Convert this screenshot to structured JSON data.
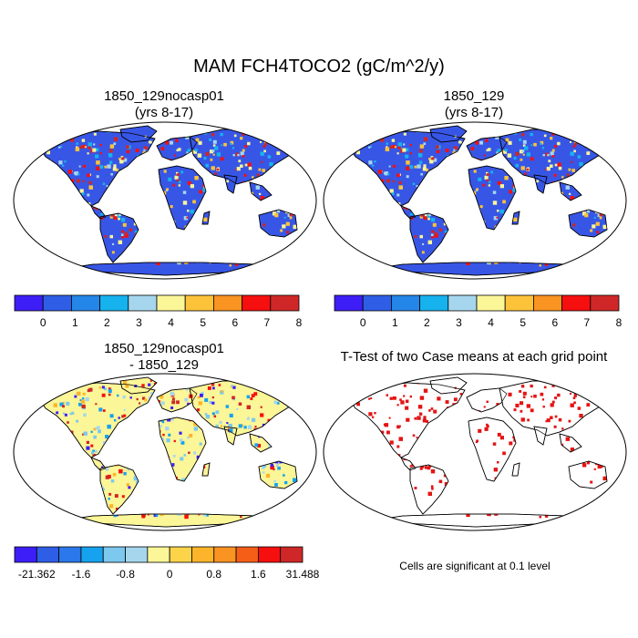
{
  "title": "MAM FCH4TOCO2 (gC/m^2/y)",
  "panels": [
    {
      "id": "case1",
      "title_line1": "1850_129nocasp01",
      "title_line2": "(yrs 8-17)"
    },
    {
      "id": "case2",
      "title_line1": "1850_129",
      "title_line2": "(yrs 8-17)"
    },
    {
      "id": "diff",
      "title_line1": "1850_129nocasp01",
      "title_line2": "- 1850_129"
    },
    {
      "id": "ttest",
      "title_line1": "T-Test of two Case means at each grid point",
      "title_line2": ""
    }
  ],
  "colorbar_abs": {
    "colors": [
      "#3d1ef7",
      "#2f5ee6",
      "#2486e8",
      "#16b2ee",
      "#a6d6ee",
      "#fbf698",
      "#fcc33a",
      "#f99321",
      "#f50f0f",
      "#cf2727"
    ],
    "labels": [
      "0",
      "1",
      "2",
      "3",
      "4",
      "5",
      "6",
      "7",
      "8"
    ]
  },
  "colorbar_diff": {
    "colors": [
      "#3d1ef7",
      "#2f5ee6",
      "#2a78e9",
      "#16a2ee",
      "#7cc8ee",
      "#a6d6ee",
      "#fbf698",
      "#fcd44a",
      "#fcb52a",
      "#f99321",
      "#f55e17",
      "#f50f0f",
      "#cf2727"
    ],
    "labels": [
      "-21.362",
      "-1.6",
      "-0.8",
      "0",
      "0.8",
      "1.6",
      "31.488"
    ]
  },
  "ttest_note": "Cells are significant at 0.1 level",
  "map_colors": {
    "case_base": "#3856e6",
    "diff_base": "#fbf698",
    "ttest_sig": "#e41414"
  }
}
